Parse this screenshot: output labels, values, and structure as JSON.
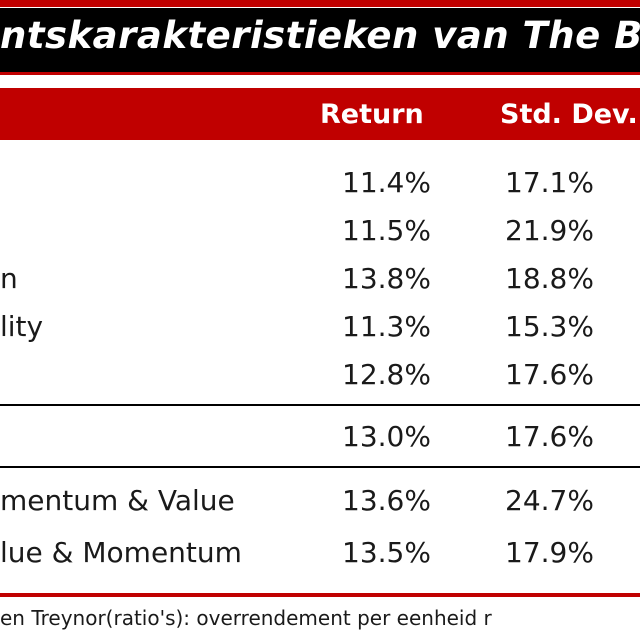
{
  "title": "ntskarakteristieken van The Big",
  "columns": {
    "return": "Return",
    "std_dev": "Std. Dev."
  },
  "rows": [
    {
      "label": "",
      "return": "11.4%",
      "std_dev": "17.1%"
    },
    {
      "label": "",
      "return": "11.5%",
      "std_dev": "21.9%"
    },
    {
      "label": "n",
      "return": "13.8%",
      "std_dev": "18.8%"
    },
    {
      "label": "lity",
      "return": "11.3%",
      "std_dev": "15.3%"
    },
    {
      "label": "",
      "return": "12.8%",
      "std_dev": "17.6%"
    },
    {
      "label": "",
      "return": "13.0%",
      "std_dev": "17.6%"
    },
    {
      "label": "mentum & Value",
      "return": "13.6%",
      "std_dev": "24.7%"
    },
    {
      "label": "lue & Momentum",
      "return": "13.5%",
      "std_dev": "17.9%"
    }
  ],
  "footnote": "en Treynor(ratio's): overrendement per eenheid r",
  "colors": {
    "accent_red": "#c00000",
    "title_bg": "#000000"
  }
}
